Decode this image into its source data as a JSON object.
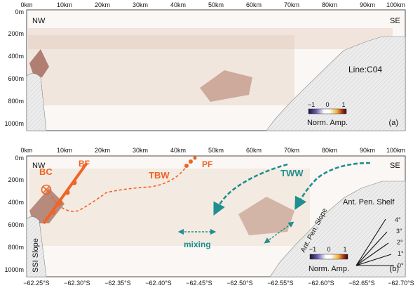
{
  "panel_a": {
    "x_ticks": [
      "0km",
      "10km",
      "20km",
      "30km",
      "40km",
      "50km",
      "60km",
      "70km",
      "80km",
      "90km",
      "100km"
    ],
    "y_ticks": [
      "0m",
      "200m",
      "400m",
      "600m",
      "800m",
      "1000m"
    ],
    "left_label": "NW",
    "right_label": "SE",
    "line_label": "Line:C04",
    "colorbar_ticks": [
      "−1",
      "0",
      "1"
    ],
    "colorbar_title": "Norm. Amp.",
    "panel_tag": "(a)"
  },
  "panel_b": {
    "x_ticks": [
      "0km",
      "10km",
      "20km",
      "30km",
      "40km",
      "50km",
      "60km",
      "70km",
      "80km",
      "90km",
      "100km"
    ],
    "y_ticks": [
      "0m",
      "200m",
      "400m",
      "600m",
      "800m",
      "1000m"
    ],
    "left_label": "NW",
    "right_label": "SE",
    "annotations": {
      "bc": "BC",
      "bf": "BF",
      "tbw": "TBW",
      "pf": "PF",
      "tww": "TWW",
      "mixing": "mixing",
      "shelf": "Ant. Pen. Shelf",
      "slope": "Ant. Pen. Slope",
      "ssi": "SSI Slope"
    },
    "angle_labels": [
      "4°",
      "3°",
      "2°",
      "1°",
      "0°"
    ],
    "colorbar_ticks": [
      "−1",
      "0",
      "1"
    ],
    "colorbar_title": "Norm. Amp.",
    "panel_tag": "(b)",
    "lat_ticks": [
      "−62.25°S",
      "−62.30°S",
      "−62.35°S",
      "−62.40°S",
      "−62.45°S",
      "−62.50°S",
      "−62.55°S",
      "−62.60°S",
      "−62.65°S",
      "−62.70°S"
    ]
  },
  "colors": {
    "orange": "#f06424",
    "teal": "#1f8f8f",
    "seabed": "#ebebeb"
  }
}
